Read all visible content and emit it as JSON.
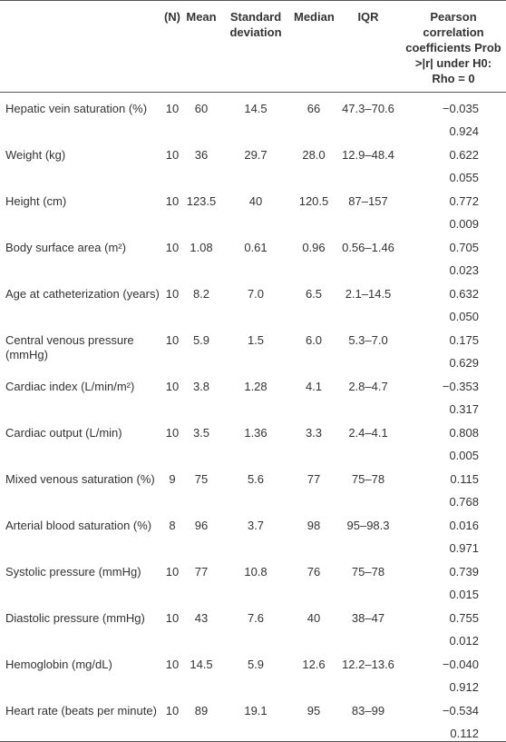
{
  "table": {
    "header": [
      "(N)",
      "Mean",
      "Standard deviation",
      "Median",
      "IQR",
      "Pearson correlation coefficients Prob >|r| under H0: Rho = 0"
    ],
    "rows": [
      [
        "Hepatic vein saturation (%)",
        "10",
        "60",
        "14.5",
        "66",
        "47.3–70.6",
        "−0.035",
        "0.924"
      ],
      [
        "Weight (kg)",
        "10",
        "36",
        "29.7",
        "28.0",
        "12.9–48.4",
        "0.622",
        "0.055"
      ],
      [
        "Height (cm)",
        "10",
        "123.5",
        "40",
        "120.5",
        "87–157",
        "0.772",
        "0.009"
      ],
      [
        "Body surface area (m²)",
        "10",
        "1.08",
        "0.61",
        "0.96",
        "0.56–1.46",
        "0.705",
        "0.023"
      ],
      [
        "Age at catheterization (years)",
        "10",
        "8.2",
        "7.0",
        "6.5",
        "2.1–14.5",
        "0.632",
        "0.050"
      ],
      [
        "Central venous pressure (mmHg)",
        "10",
        "5.9",
        "1.5",
        "6.0",
        "5.3–7.0",
        "0.175",
        "0.629"
      ],
      [
        "Cardiac index (L/min/m²)",
        "10",
        "3.8",
        "1.28",
        "4.1",
        "2.8–4.7",
        "−0.353",
        "0.317"
      ],
      [
        "Cardiac output (L/min)",
        "10",
        "3.5",
        "1.36",
        "3.3",
        "2.4–4.1",
        "0.808",
        "0.005"
      ],
      [
        "Mixed venous saturation (%)",
        "9",
        "75",
        "5.6",
        "77",
        "75–78",
        "0.115",
        "0.768"
      ],
      [
        "Arterial blood saturation (%)",
        "8",
        "96",
        "3.7",
        "98",
        "95–98.3",
        "0.016",
        "0.971"
      ],
      [
        "Systolic pressure (mmHg)",
        "10",
        "77",
        "10.8",
        "76",
        "75–78",
        "0.739",
        "0.015"
      ],
      [
        "Diastolic pressure (mmHg)",
        "10",
        "43",
        "7.6",
        "40",
        "38–47",
        "0.755",
        "0.012"
      ],
      [
        "Hemoglobin (mg/dL)",
        "10",
        "14.5",
        "5.9",
        "12.6",
        "12.2–13.6",
        "−0.040",
        "0.912"
      ],
      [
        "Heart rate (beats per minute)",
        "10",
        "89",
        "19.1",
        "95",
        "83–99",
        "−0.534",
        "0.112"
      ]
    ]
  }
}
